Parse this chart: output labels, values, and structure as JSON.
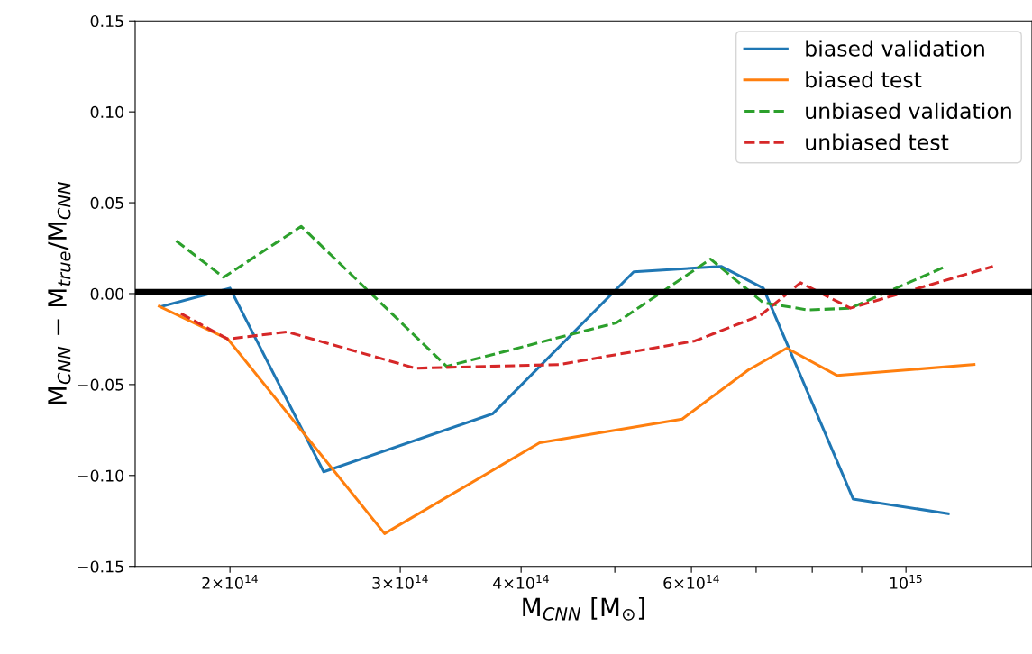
{
  "chart_data": {
    "type": "line",
    "xlabel": "M$_{CNN}$ [M$_{⊙}$]",
    "ylabel": "M$_{CNN}$ − M$_{true}$/M$_{CNN}$",
    "log": "x",
    "xlim": [
      159600000000000.0,
      1350000000000000.0
    ],
    "ylim": [
      -0.15,
      0.15
    ],
    "xticks": [
      {
        "value": 200000000000000.0,
        "label": "2×10$^{14}$"
      },
      {
        "value": 300000000000000.0,
        "label": "3×10$^{14}$"
      },
      {
        "value": 400000000000000.0,
        "label": "4×10$^{14}$"
      },
      {
        "value": 500000000000000.0,
        "label": null
      },
      {
        "value": 600000000000000.0,
        "label": "6×10$^{14}$"
      },
      {
        "value": 700000000000000.0,
        "label": null
      },
      {
        "value": 800000000000000.0,
        "label": null
      },
      {
        "value": 900000000000000.0,
        "label": null
      },
      {
        "value": 1000000000000000.0,
        "label": "10$^{15}$"
      }
    ],
    "yticks": [
      {
        "value": -0.15,
        "label": "−0.15"
      },
      {
        "value": -0.1,
        "label": "−0.10"
      },
      {
        "value": -0.05,
        "label": "−0.05"
      },
      {
        "value": 0,
        "label": "0.00"
      },
      {
        "value": 0.05,
        "label": "0.05"
      },
      {
        "value": 0.1,
        "label": "0.10"
      },
      {
        "value": 0.15,
        "label": "0.15"
      }
    ],
    "grid": false,
    "legend": "top right",
    "ref_lines": [
      {
        "axis": "y",
        "value": 0.001,
        "label": null,
        "color": "#000000"
      }
    ],
    "series": [
      {
        "name": "biased validation",
        "color": "#1f77b4",
        "line_style": "solid",
        "x": [
          170000000000000.0,
          200000000000000.0,
          250000000000000.0,
          374000000000000.0,
          523000000000000.0,
          644000000000000.0,
          712000000000000.0,
          882000000000000.0,
          1106000000000000.0
        ],
        "values": [
          -0.007,
          0.003,
          -0.098,
          -0.066,
          0.012,
          0.015,
          0.003,
          -0.113,
          -0.121
        ]
      },
      {
        "name": "biased test",
        "color": "#ff7f0e",
        "line_style": "solid",
        "x": [
          169000000000000.0,
          199000000000000.0,
          289000000000000.0,
          418000000000000.0,
          587000000000000.0,
          687000000000000.0,
          753000000000000.0,
          849000000000000.0,
          1176000000000000.0
        ],
        "values": [
          -0.007,
          -0.025,
          -0.132,
          -0.082,
          -0.069,
          -0.042,
          -0.03,
          -0.045,
          -0.039
        ]
      },
      {
        "name": "unbiased validation",
        "color": "#2ca02c",
        "line_style": "dashed",
        "x": [
          176000000000000.0,
          197000000000000.0,
          237000000000000.0,
          335000000000000.0,
          502000000000000.0,
          628000000000000.0,
          712000000000000.0,
          792000000000000.0,
          876000000000000.0,
          1100000000000000.0
        ],
        "values": [
          0.029,
          0.009,
          0.037,
          -0.04,
          -0.016,
          0.019,
          -0.005,
          -0.009,
          -0.008,
          0.015
        ]
      },
      {
        "name": "unbiased test",
        "color": "#d62728",
        "line_style": "dashed",
        "x": [
          178000000000000.0,
          199000000000000.0,
          229000000000000.0,
          311000000000000.0,
          438000000000000.0,
          605000000000000.0,
          707000000000000.0,
          778000000000000.0,
          876000000000000.0,
          1230000000000000.0
        ],
        "values": [
          -0.011,
          -0.025,
          -0.021,
          -0.041,
          -0.039,
          -0.026,
          -0.012,
          0.006,
          -0.008,
          0.015
        ]
      }
    ]
  }
}
